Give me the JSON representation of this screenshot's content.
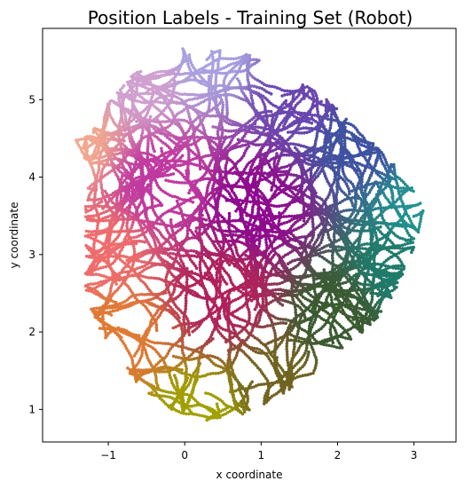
{
  "chart_data": {
    "type": "scatter",
    "title": "Position Labels - Training Set (Robot)",
    "xlabel": "x coordinate",
    "ylabel": "y coordinate",
    "xlim": [
      -1.86,
      3.55
    ],
    "ylim": [
      0.58,
      5.92
    ],
    "xticks": [
      -1,
      0,
      1,
      2,
      3
    ],
    "yticks": [
      1,
      2,
      3,
      4,
      5
    ],
    "xtick_labels": [
      "−1",
      "0",
      "1",
      "2",
      "3"
    ],
    "ytick_labels": [
      "1",
      "2",
      "3",
      "4",
      "5"
    ],
    "grid": false,
    "legend": "none",
    "color_encoding": "position (x, y) mapped to color",
    "region_outline": [
      [
        0.15,
        5.68
      ],
      [
        0.8,
        5.6
      ],
      [
        1.3,
        5.35
      ],
      [
        1.8,
        5.05
      ],
      [
        2.2,
        4.7
      ],
      [
        2.5,
        4.4
      ],
      [
        2.9,
        4.0
      ],
      [
        3.15,
        3.58
      ],
      [
        3.0,
        3.1
      ],
      [
        2.8,
        2.6
      ],
      [
        2.55,
        2.2
      ],
      [
        2.1,
        1.8
      ],
      [
        1.6,
        1.4
      ],
      [
        1.2,
        1.15
      ],
      [
        0.8,
        0.95
      ],
      [
        0.3,
        0.85
      ],
      [
        -0.2,
        1.0
      ],
      [
        -0.6,
        1.3
      ],
      [
        -0.9,
        1.7
      ],
      [
        -1.15,
        2.1
      ],
      [
        -1.3,
        2.5
      ],
      [
        -1.3,
        2.9
      ],
      [
        -1.3,
        3.3
      ],
      [
        -1.3,
        3.8
      ],
      [
        -1.25,
        4.2
      ],
      [
        -1.55,
        4.42
      ],
      [
        -1.2,
        4.6
      ],
      [
        -1.0,
        4.95
      ],
      [
        -0.7,
        5.3
      ],
      [
        -0.35,
        5.55
      ],
      [
        -0.1,
        5.65
      ]
    ],
    "color_anchors": [
      {
        "x": -1.5,
        "y": 4.5,
        "color": "#f2a88e"
      },
      {
        "x": -1.1,
        "y": 3.0,
        "color": "#ef6c6c"
      },
      {
        "x": -0.9,
        "y": 2.0,
        "color": "#e07a34"
      },
      {
        "x": 0.2,
        "y": 0.9,
        "color": "#a0a000"
      },
      {
        "x": 1.2,
        "y": 1.3,
        "color": "#6f6420"
      },
      {
        "x": 2.0,
        "y": 2.2,
        "color": "#3a5a30"
      },
      {
        "x": 2.8,
        "y": 2.8,
        "color": "#1f7a6a"
      },
      {
        "x": 3.1,
        "y": 3.6,
        "color": "#239090"
      },
      {
        "x": 2.3,
        "y": 4.5,
        "color": "#3d52a0"
      },
      {
        "x": 1.5,
        "y": 5.1,
        "color": "#6a45b0"
      },
      {
        "x": 0.3,
        "y": 5.6,
        "color": "#a8a0e0"
      },
      {
        "x": -0.6,
        "y": 5.3,
        "color": "#d0a0d0"
      },
      {
        "x": 0.9,
        "y": 3.6,
        "color": "#8e0a8e"
      },
      {
        "x": 0.5,
        "y": 2.5,
        "color": "#b0205a"
      },
      {
        "x": -0.3,
        "y": 3.9,
        "color": "#c038a0"
      }
    ]
  }
}
